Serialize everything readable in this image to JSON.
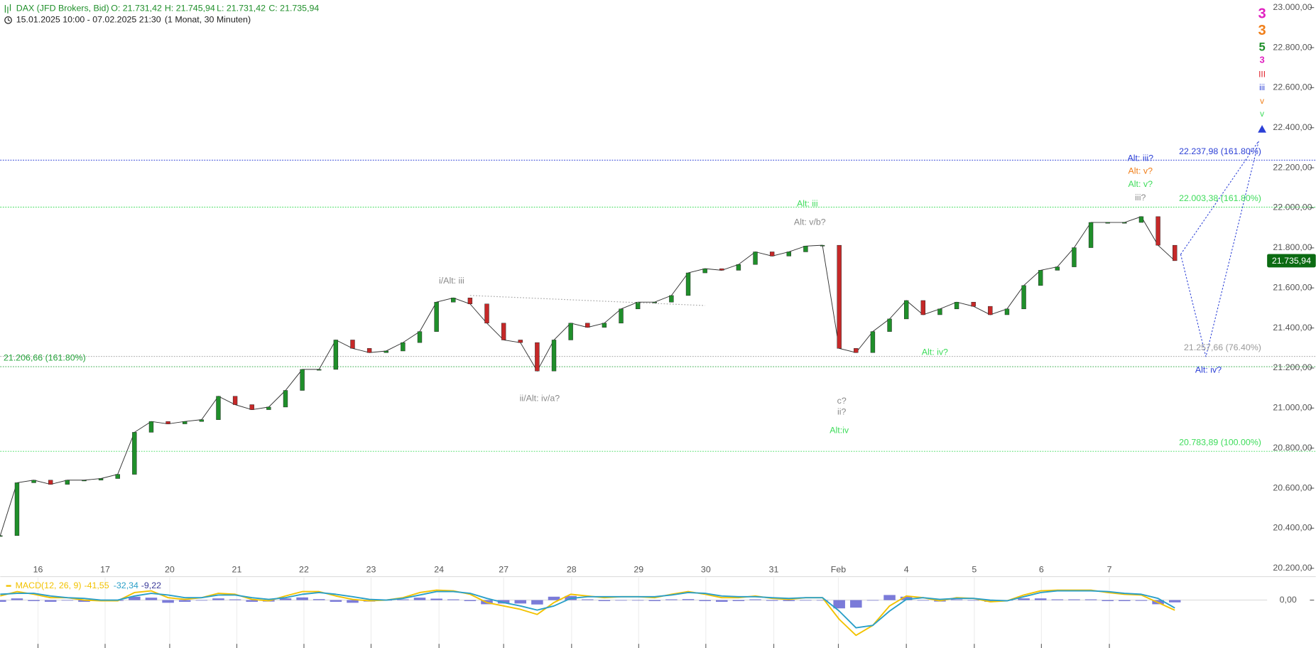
{
  "header": {
    "instrument": "DAX (JFD Brokers, Bid)",
    "ohlc": [
      "O: 21.731,42",
      "H: 21.745,94",
      "L: 21.731,42",
      "C: 21.735,94"
    ],
    "range": "15.01.2025 10:00 - 07.02.2025 21:30",
    "interval": "(1 Monat, 30 Minuten)"
  },
  "chart_data": [
    {
      "type": "candle",
      "xlim": [
        0,
        75.5
      ],
      "xticks": [
        {
          "value": 2.25,
          "label": "16"
        },
        {
          "value": 6.25,
          "label": "17"
        },
        {
          "value": 10.1,
          "label": "20"
        },
        {
          "value": 14.1,
          "label": "21"
        },
        {
          "value": 18.1,
          "label": "22"
        },
        {
          "value": 22.1,
          "label": "23"
        },
        {
          "value": 26.15,
          "label": "24"
        },
        {
          "value": 30,
          "label": "27"
        },
        {
          "value": 34.05,
          "label": "28"
        },
        {
          "value": 38.05,
          "label": "29"
        },
        {
          "value": 42.05,
          "label": "30"
        },
        {
          "value": 46.1,
          "label": "31"
        },
        {
          "value": 49.95,
          "label": "Feb"
        },
        {
          "value": 54,
          "label": "4"
        },
        {
          "value": 58.05,
          "label": "5"
        },
        {
          "value": 62.05,
          "label": "6"
        },
        {
          "value": 66.1,
          "label": "7"
        }
      ],
      "ylim": [
        20200,
        23000
      ],
      "yticks": [
        {
          "value": 20200,
          "label": "20.200,00"
        },
        {
          "value": 20400,
          "label": "20.400,00"
        },
        {
          "value": 20600,
          "label": "20.600,00"
        },
        {
          "value": 20800,
          "label": "20.800,00"
        },
        {
          "value": 21000,
          "label": "21.000,00"
        },
        {
          "value": 21200,
          "label": "21.200,00"
        },
        {
          "value": 21400,
          "label": "21.400,00"
        },
        {
          "value": 21600,
          "label": "21.600,00"
        },
        {
          "value": 21800,
          "label": "21.800,00"
        },
        {
          "value": 22000,
          "label": "22.000,00"
        },
        {
          "value": 22200,
          "label": "22.200,00"
        },
        {
          "value": 22400,
          "label": "22.400,00"
        },
        {
          "value": 22600,
          "label": "22.600,00"
        },
        {
          "value": 22800,
          "label": "22.800,00"
        },
        {
          "value": 23000,
          "label": "23.000,00"
        }
      ],
      "series": [
        {
          "up_color": "#1f8f2a",
          "down_color": "#c62828",
          "values": [
            20363,
            20627,
            20640,
            20619,
            20640,
            20640,
            20648,
            20669,
            20879,
            20933,
            20921,
            20933,
            20942,
            21059,
            21017,
            20992,
            21005,
            21088,
            21193,
            21193,
            21340,
            21298,
            21277,
            21285,
            21327,
            21382,
            21529,
            21550,
            21520,
            21424,
            21340,
            21327,
            21185,
            21340,
            21424,
            21403,
            21424,
            21495,
            21529,
            21529,
            21562,
            21675,
            21696,
            21688,
            21717,
            21780,
            21759,
            21780,
            21809,
            21813,
            21298,
            21277,
            21382,
            21445,
            21537,
            21466,
            21495,
            21529,
            21508,
            21466,
            21495,
            21612,
            21688,
            21705,
            21801,
            21927,
            21927,
            21927,
            21956,
            21813,
            21735.94
          ]
        }
      ],
      "last_price": {
        "value": 21735.94,
        "label": "21.735,94",
        "color": "#0b6b12"
      },
      "levels": [
        {
          "value": 22237.98,
          "label": "22.237,98 (161.80%)",
          "color": "#2b3fd6"
        },
        {
          "value": 22003.38,
          "label": "22.003,38 (161.80%)",
          "color": "#3ddc5a"
        },
        {
          "value": 21257.66,
          "label": "21.257,66 (76.40%)",
          "color": "#9a9a9a"
        },
        {
          "value": 21206.66,
          "label": "21.206,66 (161.80%)",
          "color": "#24a33a"
        },
        {
          "value": 20783.89,
          "label": "20.783,89 (100.00%)",
          "color": "#3ddc5a"
        }
      ],
      "annotations": [
        "Alt: iii",
        "Alt: v/b?",
        "i/Alt: iii",
        "ii/Alt: iv/a?",
        "c?",
        "ii?",
        "Alt:iv",
        "Alt: iv?",
        "Alt: iii?",
        "Alt: v?",
        "Alt: v?",
        "iii?",
        "Alt: iv?"
      ],
      "wave_degrees": [
        "3",
        "3",
        "5",
        "3",
        "III",
        "iii",
        "v",
        "v"
      ]
    },
    {
      "type": "macd",
      "title": "MACD(12, 26, 9)",
      "ylim": [
        -197,
        93
      ],
      "yticks": [
        {
          "value": 0,
          "label": "0,00"
        }
      ],
      "series": [
        {
          "kind": "histogram",
          "color": "#5a5ad0",
          "value_label": "-9,22",
          "values": [
            -7,
            7,
            -4,
            -7,
            0,
            -7,
            -3,
            -3,
            14,
            10,
            -11,
            -7,
            0,
            7,
            3,
            -7,
            -6,
            7,
            11,
            4,
            -7,
            -11,
            -6,
            0,
            3,
            10,
            6,
            3,
            -4,
            -17,
            -14,
            -14,
            -18,
            14,
            17,
            3,
            -4,
            0,
            0,
            -4,
            3,
            4,
            -4,
            -7,
            -4,
            3,
            -3,
            -4,
            0,
            0,
            -34,
            -31,
            0,
            21,
            14,
            0,
            -6,
            3,
            0,
            -7,
            0,
            7,
            7,
            3,
            3,
            3,
            -4,
            -4,
            -3,
            -17,
            -9.22
          ]
        },
        {
          "kind": "line",
          "color": "#f2c200",
          "value_label": "-41,55",
          "values": [
            17,
            35,
            24,
            10,
            10,
            0,
            -3,
            -3,
            31,
            38,
            10,
            3,
            10,
            28,
            24,
            3,
            -3,
            17,
            35,
            35,
            17,
            3,
            -3,
            0,
            10,
            31,
            41,
            38,
            24,
            -10,
            -24,
            -38,
            -59,
            -10,
            24,
            17,
            10,
            14,
            14,
            10,
            24,
            35,
            24,
            10,
            10,
            17,
            7,
            3,
            10,
            10,
            -79,
            -145,
            -104,
            -24,
            17,
            10,
            -3,
            10,
            7,
            -7,
            -3,
            21,
            38,
            41,
            41,
            41,
            31,
            24,
            21,
            -10,
            -41.55
          ]
        },
        {
          "kind": "line",
          "color": "#2a9fc8",
          "value_label": "-32,34",
          "values": [
            24,
            28,
            28,
            17,
            10,
            7,
            0,
            0,
            17,
            28,
            21,
            10,
            10,
            21,
            21,
            10,
            3,
            10,
            24,
            31,
            24,
            14,
            3,
            0,
            7,
            21,
            35,
            35,
            28,
            7,
            -10,
            -24,
            -41,
            -24,
            7,
            14,
            14,
            14,
            14,
            14,
            21,
            31,
            28,
            17,
            14,
            14,
            10,
            7,
            10,
            10,
            -45,
            -114,
            -104,
            -45,
            3,
            10,
            3,
            7,
            7,
            0,
            -3,
            14,
            31,
            38,
            38,
            38,
            35,
            28,
            24,
            7,
            -32.34
          ]
        }
      ]
    }
  ]
}
